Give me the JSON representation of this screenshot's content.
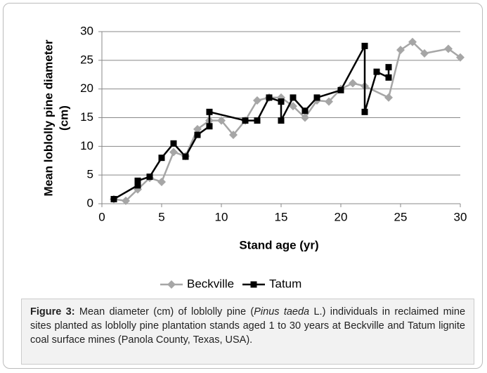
{
  "chart_data": {
    "type": "line",
    "xlabel": "Stand age (yr)",
    "ylabel": [
      "Mean loblolly pine diameter",
      "(cm)"
    ],
    "xlim": [
      0,
      30
    ],
    "xticks": [
      0,
      5,
      10,
      15,
      20,
      25,
      30
    ],
    "ylim": [
      0,
      30
    ],
    "yticks": [
      0,
      5,
      10,
      15,
      20,
      25,
      30
    ],
    "grid": true,
    "series": [
      {
        "name": "Beckville",
        "color": "#a6a6a6",
        "marker": "diamond",
        "x": [
          1,
          2,
          3,
          4,
          5,
          6,
          7,
          8,
          9,
          10,
          11,
          12,
          13,
          14,
          15,
          16,
          17,
          18,
          19,
          20,
          21,
          22,
          24,
          25,
          26,
          27,
          29,
          30
        ],
        "values": [
          0.8,
          0.5,
          2.5,
          4.5,
          3.8,
          9,
          8.3,
          13,
          14.5,
          14.5,
          12,
          14.5,
          18,
          18.5,
          18.5,
          17,
          15,
          18,
          17.8,
          20,
          21,
          20.5,
          18.5,
          26.8,
          28.2,
          26.2,
          27,
          25.5
        ]
      },
      {
        "name": "Tatum",
        "color": "#000000",
        "marker": "square",
        "x": [
          1,
          3,
          3,
          4,
          5,
          6,
          7,
          8,
          9,
          9,
          12,
          13,
          14,
          15,
          15,
          16,
          17,
          18,
          20,
          22,
          22,
          23,
          24,
          24
        ],
        "values": [
          0.8,
          3.2,
          4,
          4.7,
          8,
          10.5,
          8.2,
          12,
          13.5,
          16,
          14.5,
          14.5,
          18.5,
          17.8,
          14.5,
          18.5,
          16.2,
          18.5,
          19.8,
          27.5,
          16,
          23,
          22,
          23.8
        ]
      }
    ]
  },
  "caption": {
    "label": "Figure 3:",
    "parts": [
      " Mean diameter (cm) of loblolly pine (",
      "Pinus taeda",
      " L.) individuals in reclaimed mine sites planted as loblolly pine plantation stands aged 1 to 30 years at Beckville and Tatum lignite coal surface mines (Panola County, Texas, USA)."
    ]
  }
}
